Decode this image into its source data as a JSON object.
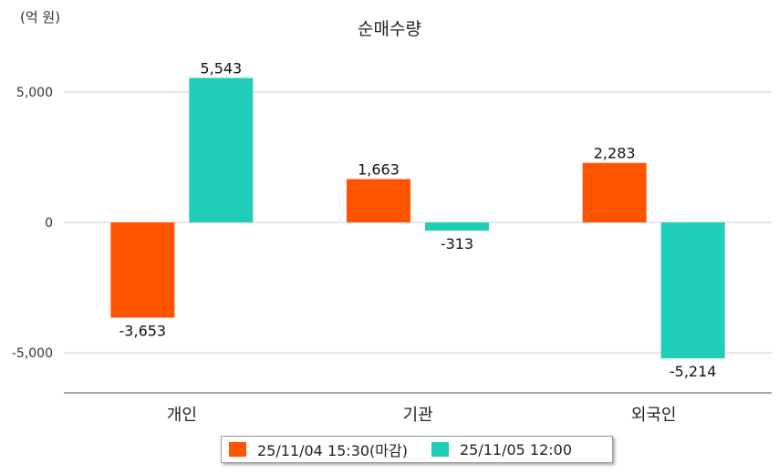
{
  "unit_label": "(억 원)",
  "chart_data": {
    "type": "bar",
    "title": "순매수량",
    "categories": [
      "개인",
      "기관",
      "외국인"
    ],
    "series": [
      {
        "name": "25/11/04 15:30(마감)",
        "color": "#ff5500",
        "values": [
          -3653,
          1663,
          2283
        ]
      },
      {
        "name": "25/11/05 12:00",
        "color": "#1fcdb9",
        "values": [
          5543,
          -313,
          -5214
        ]
      }
    ],
    "yticks": [
      5000,
      0,
      -5000
    ],
    "ytick_labels": [
      "5,000",
      "0",
      "-5,000"
    ],
    "ylim": [
      -6500,
      6500
    ],
    "grid": true,
    "legend": "bottom"
  }
}
